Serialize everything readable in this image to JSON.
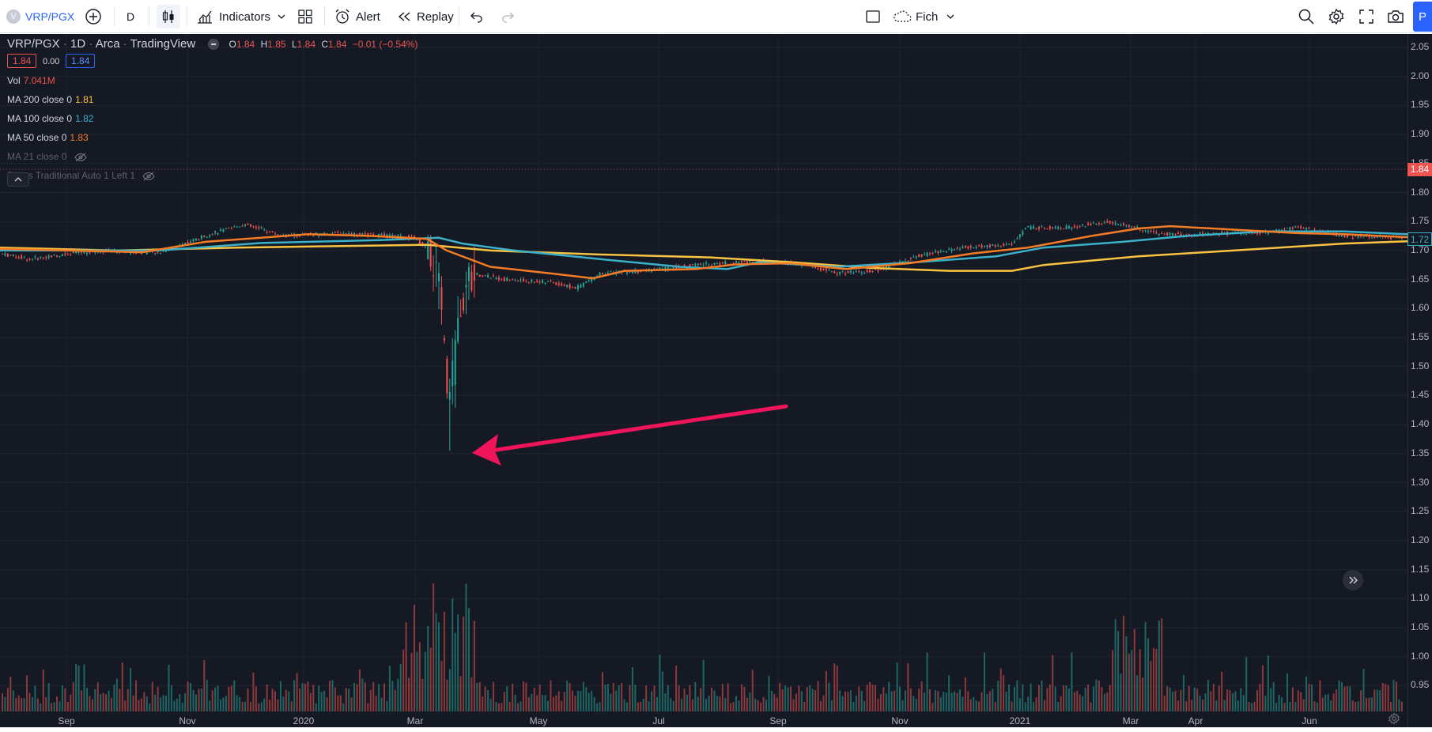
{
  "toolbar": {
    "symbol": "VRP/PGX",
    "interval": "D",
    "indicators_label": "Indicators",
    "alert_label": "Alert",
    "replay_label": "Replay",
    "layout_name": "Fich",
    "publish_label": "P"
  },
  "legend": {
    "symbol": "VRP/PGX",
    "interval": "1D",
    "exchange": "Arca",
    "source": "TradingView",
    "ohlc": {
      "o_label": "O",
      "o": "1.84",
      "h_label": "H",
      "h": "1.85",
      "l_label": "L",
      "l": "1.84",
      "c_label": "C",
      "c": "1.84",
      "change": "−0.01 (−0.54%)"
    },
    "bid": "1.84",
    "spread": "0.00",
    "ask": "1.84",
    "vol_label": "Vol",
    "vol_value": "7.041M",
    "ma200_label": "MA 200 close 0",
    "ma200_value": "1.81",
    "ma100_label": "MA 100 close 0",
    "ma100_value": "1.82",
    "ma50_label": "MA 50 close 0",
    "ma50_value": "1.83",
    "ma21_label": "MA 21 close 0",
    "pivots_label": "Pivots Traditional Auto 1 Left 1"
  },
  "price_axis": {
    "ticks": [
      "2.05",
      "2.00",
      "1.95",
      "1.90",
      "1.85",
      "1.80",
      "1.75",
      "1.70",
      "1.65",
      "1.60",
      "1.55",
      "1.50",
      "1.45",
      "1.40",
      "1.35",
      "1.30",
      "1.25",
      "1.20",
      "1.15",
      "1.10",
      "1.05",
      "1.00",
      "0.95"
    ],
    "last_price": "1.84",
    "ma_price": "1.72"
  },
  "time_axis": {
    "labels": [
      "Sep",
      "Nov",
      "2020",
      "Mar",
      "May",
      "Jul",
      "Sep",
      "Nov",
      "2021",
      "Mar",
      "Apr",
      "Jun"
    ]
  },
  "colors": {
    "background": "#141923",
    "up": "#26a69a",
    "down": "#ef5350",
    "ma200": "#f9c342",
    "ma100": "#3ab0c9",
    "ma50": "#f57c24",
    "annotation": "#f0145a",
    "last_price_tag": "#ef5350"
  }
}
